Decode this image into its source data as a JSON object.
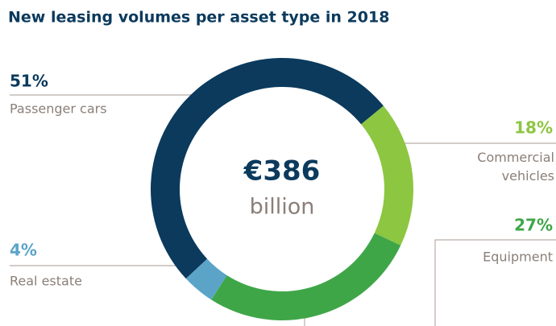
{
  "chart_data": {
    "type": "donut",
    "title": "New leasing volumes per asset type in 2018",
    "center_value": "€386",
    "center_label": "billion",
    "categories": [
      "Passenger cars",
      "Commercial vehicles",
      "Equipment",
      "Real estate"
    ],
    "values": [
      51,
      18,
      27,
      4
    ],
    "value_labels": [
      "51%",
      "18%",
      "27%",
      "4%"
    ],
    "colors": [
      "#0b3a5d",
      "#8dc641",
      "#3fa648",
      "#5ba4c8"
    ]
  }
}
